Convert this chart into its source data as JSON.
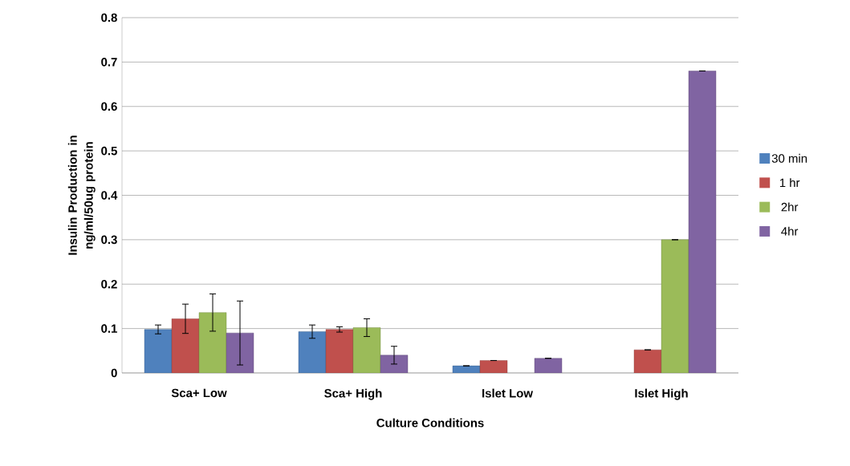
{
  "chart_data": {
    "type": "bar",
    "xlabel": "Culture Conditions",
    "ylabel": "Insulin Production in ng/ml/50ug protein",
    "categories": [
      "Sca+ Low",
      "Sca+ High",
      "Islet Low",
      "Islet High"
    ],
    "series": [
      {
        "name": "30 min",
        "color": "#4f81bd",
        "values": [
          0.098,
          0.093,
          0.016,
          null
        ],
        "errors": [
          0.01,
          0.015,
          null,
          null
        ]
      },
      {
        "name": "1 hr",
        "color": "#c0504d",
        "values": [
          0.122,
          0.098,
          0.028,
          0.052
        ],
        "errors": [
          0.033,
          0.006,
          null,
          null
        ]
      },
      {
        "name": "2hr",
        "color": "#9bbb59",
        "values": [
          0.136,
          0.102,
          null,
          0.3
        ],
        "errors": [
          0.042,
          0.02,
          null,
          null
        ]
      },
      {
        "name": "4hr",
        "color": "#8064a2",
        "values": [
          0.09,
          0.04,
          0.033,
          0.68
        ],
        "errors": [
          0.072,
          0.02,
          null,
          null
        ]
      }
    ],
    "ylim": [
      0,
      0.8
    ],
    "yticks": [
      0,
      0.1,
      0.2,
      0.3,
      0.4,
      0.5,
      0.6,
      0.7,
      0.8
    ],
    "grid": "y",
    "legend": "right"
  }
}
